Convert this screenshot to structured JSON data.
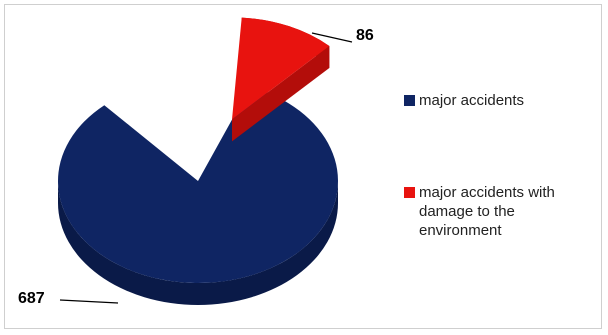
{
  "chart_data": {
    "type": "pie",
    "three_d": true,
    "exploded_slice": "major accidents with damage to the environment",
    "legend_placement": "right",
    "series": [
      {
        "labels": [
          "major accidents",
          "major accidents with damage to the environment"
        ],
        "values": [
          687,
          86
        ],
        "colors": [
          "#0f2563",
          "#e8130f"
        ]
      }
    ],
    "data_labels": [
      "687",
      "86"
    ]
  }
}
